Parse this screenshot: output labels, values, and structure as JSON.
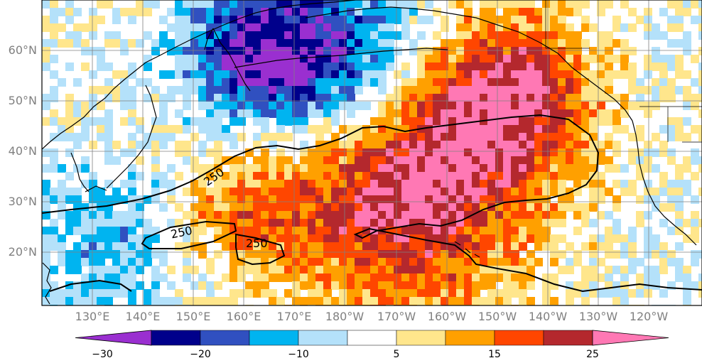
{
  "map": {
    "lat_labels": [
      "60°N",
      "50°N",
      "40°N",
      "30°N",
      "20°N"
    ],
    "lon_labels": [
      "130°E",
      "140°E",
      "150°E",
      "160°E",
      "170°E",
      "180°W",
      "170°W",
      "160°W",
      "150°W",
      "140°W",
      "130°W",
      "120°W"
    ],
    "contour_label": "250",
    "land_border_color": "#000000",
    "grid_color": "#808080"
  },
  "colorbar": {
    "colors": [
      "#9a2fd0",
      "#00008b",
      "#3050c0",
      "#00b4f0",
      "#b4e1fa",
      "#ffffff",
      "#ffe68c",
      "#ffa000",
      "#ff4600",
      "#b4282d",
      "#ff78b4"
    ],
    "tick_labels": [
      "−30",
      "−20",
      "−10",
      "5",
      "15",
      "25"
    ]
  }
}
